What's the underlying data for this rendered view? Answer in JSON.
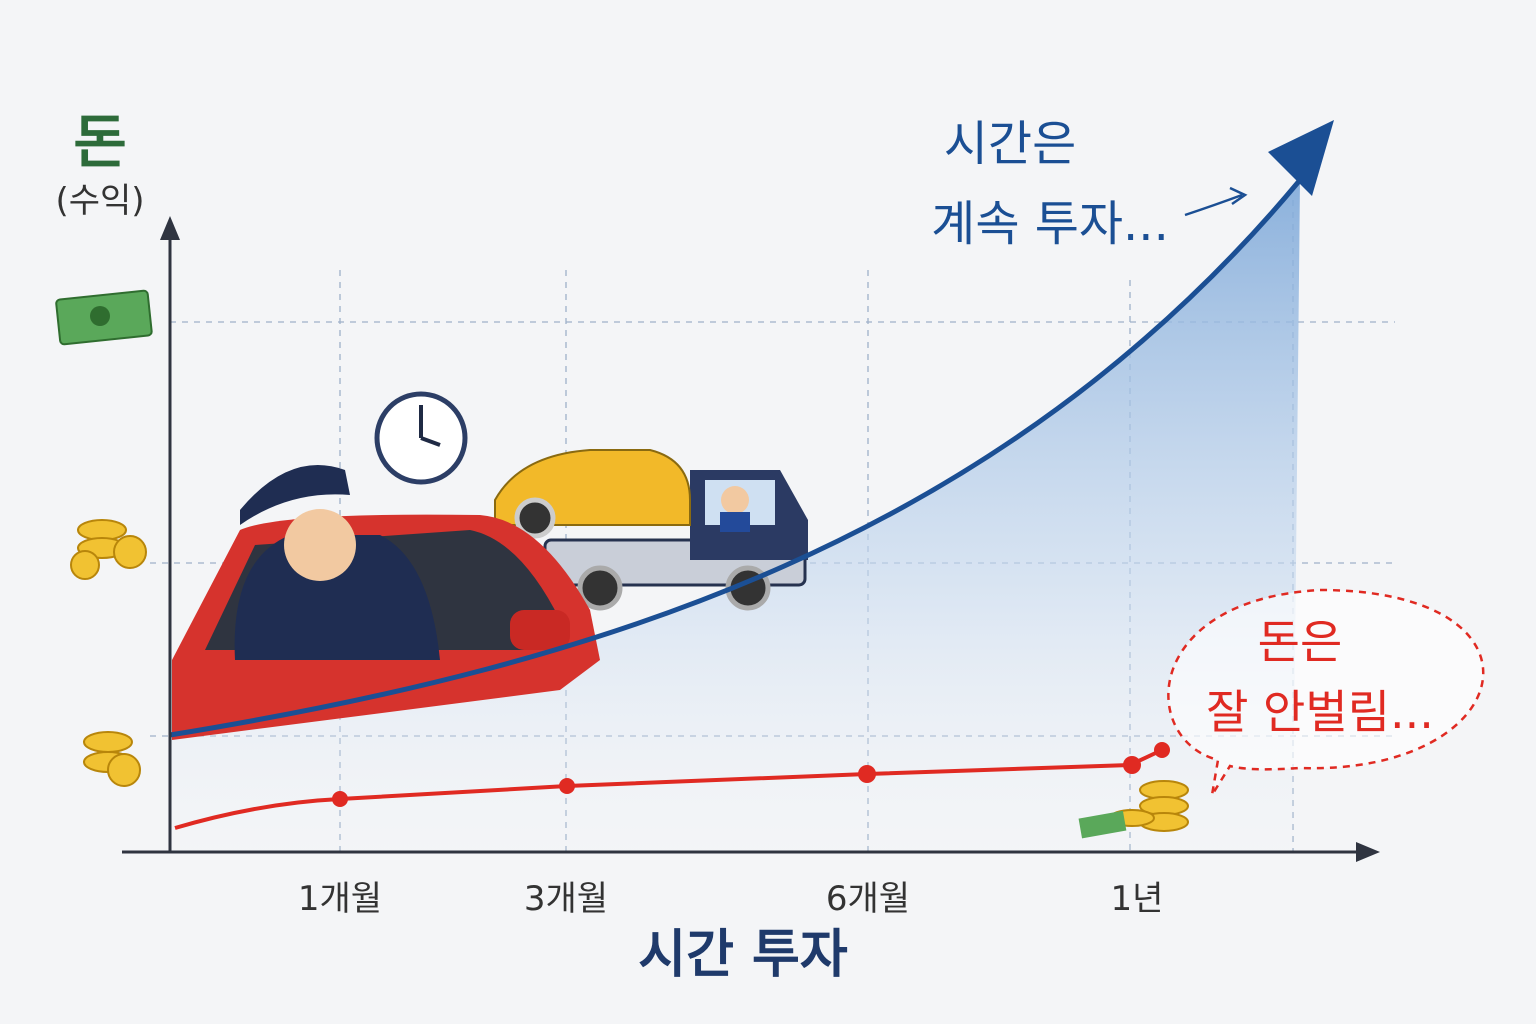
{
  "y_axis": {
    "label": "돈",
    "sublabel": "(수익)"
  },
  "x_axis": {
    "label": "시간 투자",
    "ticks": [
      "1개월",
      "3개월",
      "6개월",
      "1년"
    ]
  },
  "annotations": {
    "blue": [
      "시간은",
      "계속 투자..."
    ],
    "red": [
      "돈은",
      "잘 안벌림..."
    ]
  }
}
